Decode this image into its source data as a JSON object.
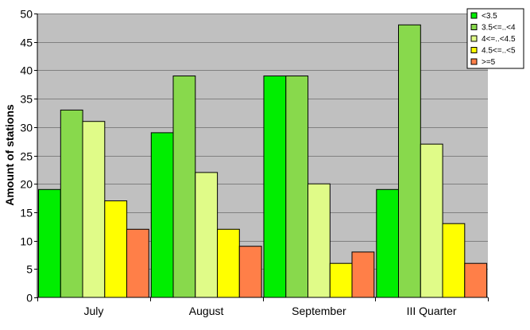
{
  "chart_data": {
    "type": "bar",
    "title": "",
    "xlabel": "",
    "ylabel": "Amount of stations",
    "categories": [
      "July",
      "August",
      "September",
      "III Quarter"
    ],
    "series": [
      {
        "name": "<3.5",
        "color": "#00ee00",
        "values": [
          19,
          29,
          39,
          19
        ]
      },
      {
        "name": "3.5<=..<4",
        "color": "#88d94c",
        "values": [
          33,
          39,
          39,
          48
        ]
      },
      {
        "name": "4<=..<4.5",
        "color": "#e0fb88",
        "values": [
          31,
          22,
          20,
          27
        ]
      },
      {
        "name": "4.5<=..<5",
        "color": "#ffff00",
        "values": [
          17,
          12,
          6,
          13
        ]
      },
      {
        "name": ">=5",
        "color": "#ff7f48",
        "values": [
          12,
          9,
          8,
          6
        ]
      }
    ],
    "ylim": [
      0,
      50
    ],
    "yticks": [
      0,
      5,
      10,
      15,
      20,
      25,
      30,
      35,
      40,
      45,
      50
    ],
    "grid": true,
    "legend_position": "top-right",
    "plot_background": "#c0c0c0"
  }
}
